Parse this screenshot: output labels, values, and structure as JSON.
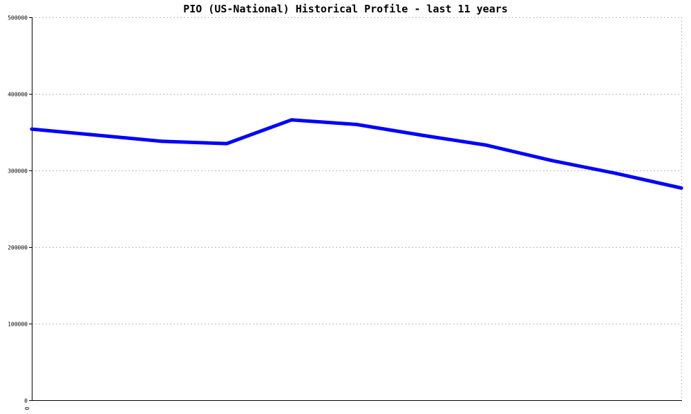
{
  "chart_data": {
    "type": "line",
    "title": "PIO (US-National) Historical Profile - last 11 years",
    "xlabel": "",
    "ylabel": "",
    "ylim": [
      0,
      500000
    ],
    "yticks": [
      0,
      100000,
      200000,
      300000,
      400000,
      500000
    ],
    "ytick_labels": [
      "0",
      "100000",
      "200000",
      "300000",
      "400000",
      "500000"
    ],
    "xtick_labels": [
      "0"
    ],
    "grid": "horizontal",
    "legend": "none",
    "x": [
      0,
      1,
      2,
      3,
      4,
      5,
      6,
      7,
      8,
      9,
      10
    ],
    "series": [
      {
        "values": [
          354000,
          346000,
          338000,
          335000,
          366000,
          360000,
          346000,
          333000,
          313000,
          296000,
          277000
        ],
        "color": "#0000ff"
      }
    ]
  }
}
